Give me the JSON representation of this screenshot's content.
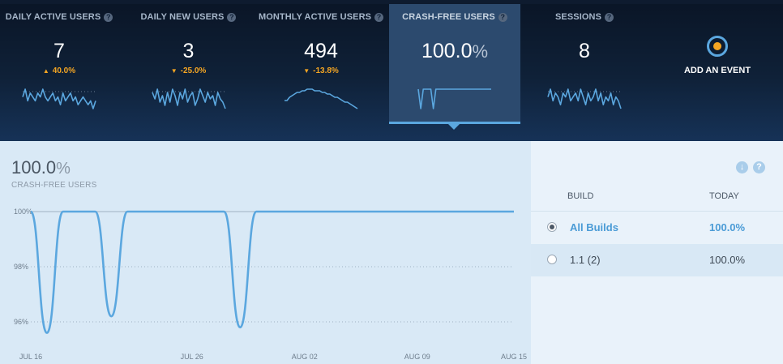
{
  "metrics": [
    {
      "label": "DAILY ACTIVE USERS",
      "value": "7",
      "unit": "",
      "delta": "40.0%",
      "direction": "up",
      "trend": [
        6,
        8,
        5,
        7,
        6,
        5,
        7,
        6,
        8,
        6,
        5,
        6,
        7,
        5,
        6,
        4,
        7,
        5,
        6,
        7,
        5,
        6,
        4,
        5,
        6,
        5,
        4,
        5,
        3,
        5
      ]
    },
    {
      "label": "DAILY NEW USERS",
      "value": "3",
      "unit": "",
      "delta": "-25.0%",
      "direction": "down",
      "trend": [
        7,
        5,
        8,
        4,
        6,
        3,
        7,
        4,
        8,
        6,
        3,
        7,
        5,
        8,
        4,
        6,
        7,
        3,
        5,
        8,
        6,
        4,
        7,
        5,
        6,
        3,
        7,
        5,
        4,
        2
      ]
    },
    {
      "label": "MONTHLY ACTIVE USERS",
      "value": "494",
      "unit": "",
      "delta": "-13.8%",
      "direction": "down",
      "trend": [
        6,
        6,
        6.2,
        6.3,
        6.4,
        6.5,
        6.5,
        6.6,
        6.6,
        6.7,
        6.7,
        6.7,
        6.6,
        6.6,
        6.6,
        6.5,
        6.5,
        6.4,
        6.4,
        6.3,
        6.2,
        6.2,
        6.1,
        6,
        5.9,
        5.9,
        5.8,
        5.7,
        5.6,
        5.5
      ]
    },
    {
      "label": "CRASH-FREE USERS",
      "value": "100.0",
      "unit": "%",
      "delta": "",
      "direction": "",
      "trend": [
        100,
        96,
        100,
        100,
        100,
        100,
        96,
        100,
        100,
        100,
        100,
        100,
        100,
        100,
        100,
        100,
        100,
        100,
        100,
        100,
        100,
        100,
        100,
        100,
        100,
        100,
        100,
        100,
        100,
        100
      ]
    },
    {
      "label": "SESSIONS",
      "value": "8",
      "unit": "",
      "delta": "",
      "direction": "",
      "trend": [
        6,
        8,
        5,
        7,
        6,
        4,
        7,
        6,
        8,
        5,
        6,
        7,
        5,
        8,
        6,
        4,
        7,
        5,
        6,
        8,
        5,
        7,
        4,
        6,
        5,
        7,
        4,
        6,
        5,
        3
      ]
    }
  ],
  "selected_metric": "CRASH-FREE USERS",
  "add_event": {
    "label": "ADD AN EVENT"
  },
  "icons": {
    "help": "help-circle-icon",
    "download": "download-icon",
    "add_event": "target-ring-icon"
  },
  "colors": {
    "accent": "#5ba7df",
    "delta": "#f5a623",
    "line": "#5ba7df"
  },
  "main": {
    "value": "100.0",
    "unit": "%",
    "caption": "CRASH-FREE USERS"
  },
  "chart_data": {
    "type": "line",
    "title": "",
    "y_unit": "%",
    "ylim": [
      95.5,
      100
    ],
    "y_ticks": [
      "100%",
      "98%",
      "96%"
    ],
    "y_tick_values": [
      100,
      98,
      96
    ],
    "x_tick_labels": [
      "JUL 16",
      "JUL 26",
      "AUG 02",
      "AUG 09",
      "AUG 15"
    ],
    "x_tick_index": [
      0,
      10,
      17,
      24,
      30
    ],
    "grid": true,
    "series": [
      {
        "values": [
          100,
          95.6,
          100,
          100,
          100,
          96.2,
          100,
          100,
          100,
          100,
          100,
          100,
          100,
          95.8,
          100,
          100,
          100,
          100,
          100,
          100,
          100,
          100,
          100,
          100,
          100,
          100,
          100,
          100,
          100,
          100,
          100
        ]
      }
    ]
  },
  "builds_table": {
    "headers": [
      "BUILD",
      "TODAY"
    ],
    "rows": [
      {
        "build": "All Builds",
        "today": "100.0%",
        "selected": true
      },
      {
        "build": "1.1 (2)",
        "today": "100.0%",
        "selected": false
      }
    ]
  }
}
